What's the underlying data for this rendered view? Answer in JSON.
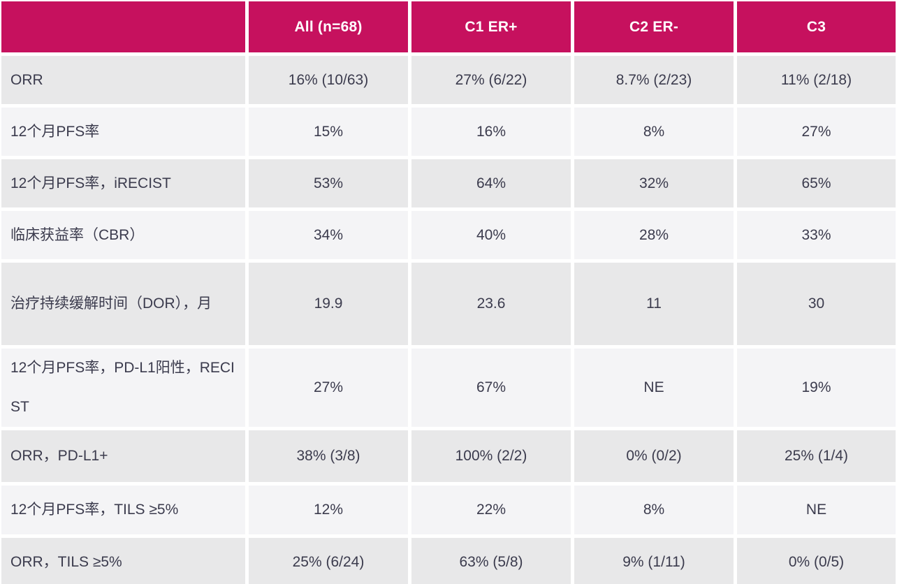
{
  "chart_data": {
    "type": "table",
    "header": {
      "corner": "",
      "columns": [
        "All (n=68)",
        "C1 ER+",
        "C2 ER-",
        "C3"
      ]
    },
    "rows": [
      {
        "label": "ORR",
        "values": [
          "16% (10/63)",
          "27% (6/22)",
          "8.7% (2/23)",
          "11% (2/18)"
        ]
      },
      {
        "label": "12个月PFS率",
        "values": [
          "15%",
          "16%",
          "8%",
          "27%"
        ]
      },
      {
        "label": "12个月PFS率，iRECIST",
        "values": [
          "53%",
          "64%",
          "32%",
          "65%"
        ]
      },
      {
        "label": "临床获益率（CBR）",
        "values": [
          "34%",
          "40%",
          "28%",
          "33%"
        ]
      },
      {
        "label": "治疗持续缓解时间（DOR），月",
        "values": [
          "19.9",
          "23.6",
          "11",
          "30"
        ]
      },
      {
        "label": "12个月PFS率，PD-L1阳性，RECIST",
        "values": [
          "27%",
          "67%",
          "NE",
          "19%"
        ]
      },
      {
        "label": "ORR，PD-L1+",
        "values": [
          "38% (3/8)",
          "100% (2/2)",
          "0% (0/2)",
          "25% (1/4)"
        ]
      },
      {
        "label": "12个月PFS率，TILS ≥5%",
        "values": [
          "12%",
          "22%",
          "8%",
          "NE"
        ]
      },
      {
        "label": "ORR，TILS ≥5%",
        "values": [
          "25% (6/24)",
          "63% (5/8)",
          "9% (1/11)",
          "0% (0/5)"
        ]
      }
    ]
  },
  "colors": {
    "header_bg": "#C6115E",
    "header_text": "#FFFFFF",
    "row_odd_bg": "#E8E8E9",
    "row_even_bg": "#F4F4F6",
    "cell_text": "#3B3B4D",
    "gap": "#FFFFFF"
  }
}
